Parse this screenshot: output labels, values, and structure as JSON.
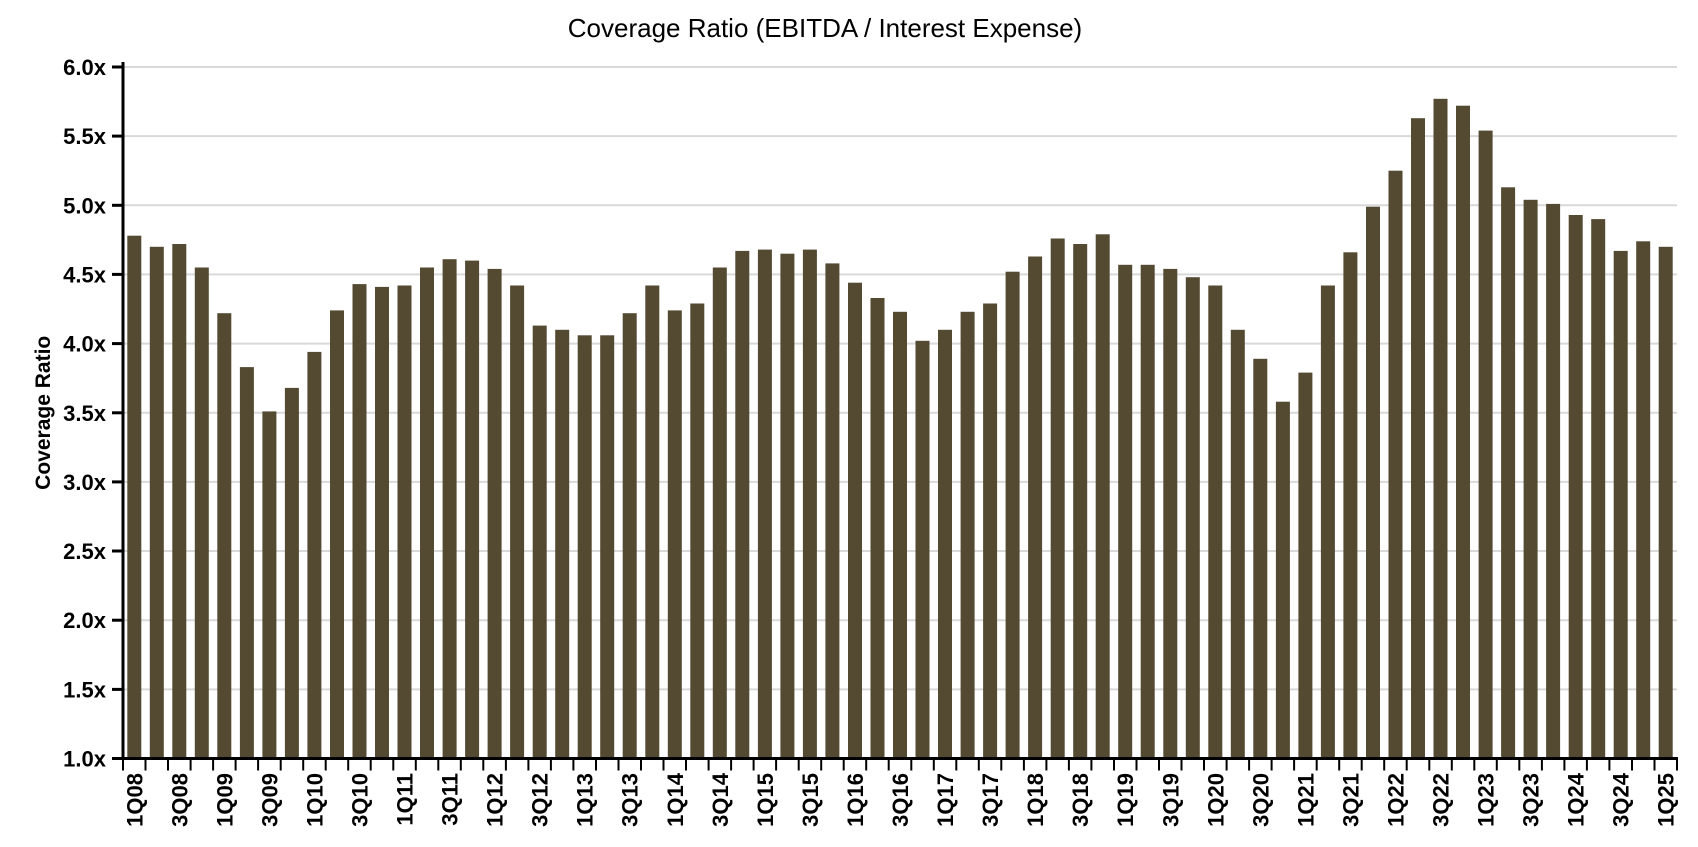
{
  "chart_data": {
    "type": "bar",
    "title": "Coverage Ratio (EBITDA / Interest Expense)",
    "ylabel": "Coverage Ratio",
    "xlabel": "",
    "categories": [
      "1Q08",
      "2Q08",
      "3Q08",
      "4Q08",
      "1Q09",
      "2Q09",
      "3Q09",
      "4Q09",
      "1Q10",
      "2Q10",
      "3Q10",
      "4Q10",
      "1Q11",
      "2Q11",
      "3Q11",
      "4Q11",
      "1Q12",
      "2Q12",
      "3Q12",
      "4Q12",
      "1Q13",
      "2Q13",
      "3Q13",
      "4Q13",
      "1Q14",
      "2Q14",
      "3Q14",
      "4Q14",
      "1Q15",
      "2Q15",
      "3Q15",
      "4Q15",
      "1Q16",
      "2Q16",
      "3Q16",
      "4Q16",
      "1Q17",
      "2Q17",
      "3Q17",
      "4Q17",
      "1Q18",
      "2Q18",
      "3Q18",
      "4Q18",
      "1Q19",
      "2Q19",
      "3Q19",
      "4Q19",
      "1Q20",
      "2Q20",
      "3Q20",
      "4Q20",
      "1Q21",
      "2Q21",
      "3Q21",
      "4Q21",
      "1Q22",
      "2Q22",
      "3Q22",
      "4Q22",
      "1Q23",
      "2Q23",
      "3Q23",
      "4Q23",
      "1Q24",
      "2Q24",
      "3Q24",
      "4Q24",
      "1Q25"
    ],
    "values": [
      4.78,
      4.7,
      4.72,
      4.55,
      4.22,
      3.83,
      3.51,
      3.68,
      3.94,
      4.24,
      4.43,
      4.41,
      4.42,
      4.55,
      4.61,
      4.6,
      4.54,
      4.42,
      4.13,
      4.1,
      4.06,
      4.06,
      4.22,
      4.42,
      4.24,
      4.29,
      4.55,
      4.67,
      4.68,
      4.65,
      4.68,
      4.58,
      4.44,
      4.33,
      4.23,
      4.02,
      4.1,
      4.23,
      4.29,
      4.52,
      4.63,
      4.76,
      4.72,
      4.79,
      4.57,
      4.57,
      4.54,
      4.48,
      4.42,
      4.1,
      3.89,
      3.58,
      3.79,
      4.42,
      4.66,
      4.99,
      5.25,
      5.63,
      5.77,
      5.72,
      5.54,
      5.13,
      5.04,
      5.01,
      4.93,
      4.9,
      4.67,
      4.74,
      4.7
    ],
    "x_tick_labels": [
      "1Q08",
      "3Q08",
      "1Q09",
      "3Q09",
      "1Q10",
      "3Q10",
      "1Q11",
      "3Q11",
      "1Q12",
      "3Q12",
      "1Q13",
      "3Q13",
      "1Q14",
      "3Q14",
      "1Q15",
      "3Q15",
      "1Q16",
      "3Q16",
      "1Q17",
      "3Q17",
      "1Q18",
      "3Q18",
      "1Q19",
      "3Q19",
      "1Q20",
      "3Q20",
      "1Q21",
      "3Q21",
      "1Q22",
      "3Q22",
      "1Q23",
      "3Q23",
      "1Q24",
      "3Q24",
      "1Q25"
    ],
    "x_tick_every": 2,
    "y_tick_labels": [
      "6.0x",
      "5.5x",
      "5.0x",
      "4.5x",
      "4.0x",
      "3.5x",
      "3.0x",
      "2.5x",
      "2.0x",
      "1.5x",
      "1.0x"
    ],
    "ylim": [
      1.0,
      6.0
    ],
    "y_tick_step": 0.5,
    "grid": "horizontal",
    "legend": "none",
    "bar_color": "#544A32",
    "gridline_color": "#D9D9D9",
    "axis_color": "#000000",
    "text_color": "#000000",
    "background_color": "#FFFFFF"
  }
}
